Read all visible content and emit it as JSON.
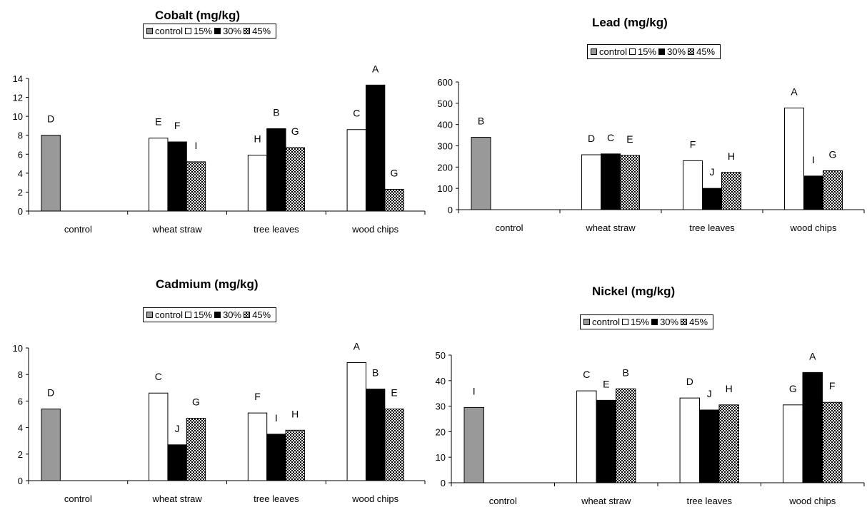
{
  "colors": {
    "control": "#999999",
    "pct15": "#ffffff",
    "pct30": "#000000",
    "pct45": "checker"
  },
  "legend": [
    "control",
    "15%",
    "30%",
    "45%"
  ],
  "chart_data": [
    {
      "type": "bar",
      "title": "Cobalt (mg/kg)",
      "categories": [
        "control",
        "wheat straw",
        "tree leaves",
        "wood chips"
      ],
      "yticks": [
        "0",
        "2",
        "4",
        "6",
        "8",
        "10",
        "12",
        "14"
      ],
      "ylim": [
        0,
        14
      ],
      "series": [
        {
          "name": "control",
          "values": [
            8.0,
            null,
            null,
            null
          ],
          "labels": [
            "D",
            "",
            "",
            ""
          ]
        },
        {
          "name": "15%",
          "values": [
            null,
            7.7,
            5.9,
            8.6
          ],
          "labels": [
            "",
            "E",
            "H",
            "C"
          ]
        },
        {
          "name": "30%",
          "values": [
            null,
            7.3,
            8.7,
            13.3
          ],
          "labels": [
            "",
            "F",
            "B",
            "A"
          ]
        },
        {
          "name": "45%",
          "values": [
            null,
            5.2,
            6.7,
            2.3
          ],
          "labels": [
            "",
            "I",
            "G",
            "G"
          ]
        }
      ]
    },
    {
      "type": "bar",
      "title": "Lead (mg/kg)",
      "categories": [
        "control",
        "wheat straw",
        "tree leaves",
        "wood chips"
      ],
      "yticks": [
        "0",
        "100",
        "200",
        "300",
        "400",
        "500",
        "600"
      ],
      "ylim": [
        0,
        600
      ],
      "series": [
        {
          "name": "control",
          "values": [
            340,
            null,
            null,
            null
          ],
          "labels": [
            "B",
            "",
            "",
            ""
          ]
        },
        {
          "name": "15%",
          "values": [
            null,
            258,
            230,
            478
          ],
          "labels": [
            "",
            "D",
            "F",
            "A"
          ]
        },
        {
          "name": "30%",
          "values": [
            null,
            262,
            100,
            158
          ],
          "labels": [
            "",
            "C",
            "J",
            "I"
          ]
        },
        {
          "name": "45%",
          "values": [
            null,
            255,
            175,
            183
          ],
          "labels": [
            "",
            "E",
            "H",
            "G"
          ]
        }
      ]
    },
    {
      "type": "bar",
      "title": "Cadmium (mg/kg)",
      "categories": [
        "control",
        "wheat straw",
        "tree leaves",
        "wood chips"
      ],
      "yticks": [
        "0",
        "2",
        "4",
        "6",
        "8",
        "10"
      ],
      "ylim": [
        0,
        10
      ],
      "series": [
        {
          "name": "control",
          "values": [
            5.4,
            null,
            null,
            null
          ],
          "labels": [
            "D",
            "",
            "",
            ""
          ]
        },
        {
          "name": "15%",
          "values": [
            null,
            6.6,
            5.1,
            8.9
          ],
          "labels": [
            "",
            "C",
            "F",
            "A"
          ]
        },
        {
          "name": "30%",
          "values": [
            null,
            2.7,
            3.5,
            6.9
          ],
          "labels": [
            "",
            "J",
            "I",
            "B"
          ]
        },
        {
          "name": "45%",
          "values": [
            null,
            4.7,
            3.8,
            5.4
          ],
          "labels": [
            "",
            "G",
            "H",
            "E"
          ]
        }
      ]
    },
    {
      "type": "bar",
      "title": "Nickel (mg/kg)",
      "categories": [
        "control",
        "wheat straw",
        "tree leaves",
        "wood chips"
      ],
      "yticks": [
        "0",
        "10",
        "20",
        "30",
        "40",
        "50"
      ],
      "ylim": [
        0,
        50
      ],
      "series": [
        {
          "name": "control",
          "values": [
            29.5,
            null,
            null,
            null
          ],
          "labels": [
            "I",
            "",
            "",
            ""
          ]
        },
        {
          "name": "15%",
          "values": [
            null,
            36.0,
            33.2,
            30.5
          ],
          "labels": [
            "",
            "C",
            "D",
            "G"
          ]
        },
        {
          "name": "30%",
          "values": [
            null,
            32.3,
            28.5,
            43.2
          ],
          "labels": [
            "",
            "E",
            "J",
            "A"
          ]
        },
        {
          "name": "45%",
          "values": [
            null,
            36.8,
            30.5,
            31.5
          ],
          "labels": [
            "",
            "B",
            "H",
            "F"
          ]
        }
      ]
    }
  ]
}
